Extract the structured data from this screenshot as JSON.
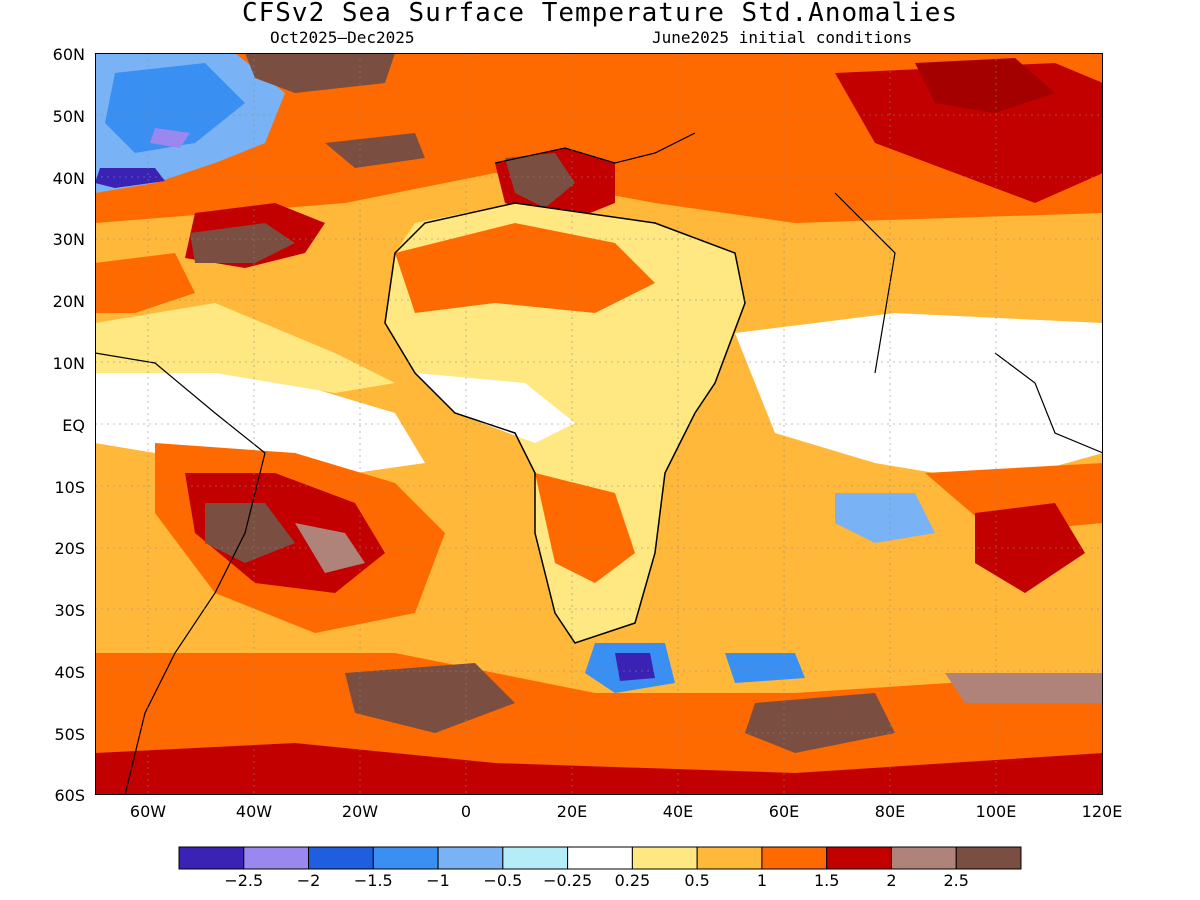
{
  "title": "CFSv2 Sea Surface Temperature Std.Anomalies",
  "subtitle_left": "Oct2025–Dec2025",
  "subtitle_right": "June2025 initial conditions",
  "lat_labels": [
    "60N",
    "50N",
    "40N",
    "30N",
    "20N",
    "10N",
    "EQ",
    "10S",
    "20S",
    "30S",
    "40S",
    "50S",
    "60S"
  ],
  "lon_labels": [
    "60W",
    "40W",
    "20W",
    "0",
    "20E",
    "40E",
    "60E",
    "80E",
    "100E",
    "120E"
  ],
  "colorbar": {
    "colors": [
      "#3a22b4",
      "#9b87f0",
      "#1f5fdf",
      "#3a8ff2",
      "#79b3f5",
      "#b4ecf7",
      "#ffffff",
      "#ffe882",
      "#ffb83a",
      "#ff6a00",
      "#c30000",
      "#b0837a",
      "#7a4e40"
    ],
    "labels": [
      "-2.5",
      "-2",
      "-1.5",
      "-1",
      "-0.5",
      "-0.25",
      "0.25",
      "0.5",
      "1",
      "1.5",
      "2",
      "2.5"
    ]
  },
  "map_regions": [
    {
      "name": "north-atlantic-cold",
      "level": "-1"
    },
    {
      "name": "west-north-atlantic-cold",
      "level": "-2.5"
    },
    {
      "name": "mediterranean",
      "level": "2.5"
    },
    {
      "name": "south-atlantic-warm",
      "level": "2.5"
    },
    {
      "name": "southern-indian-cold",
      "level": "-2"
    },
    {
      "name": "equatorial-atlantic-neutral",
      "level": "0"
    },
    {
      "name": "southern-ocean-warm",
      "level": "2.5"
    }
  ]
}
